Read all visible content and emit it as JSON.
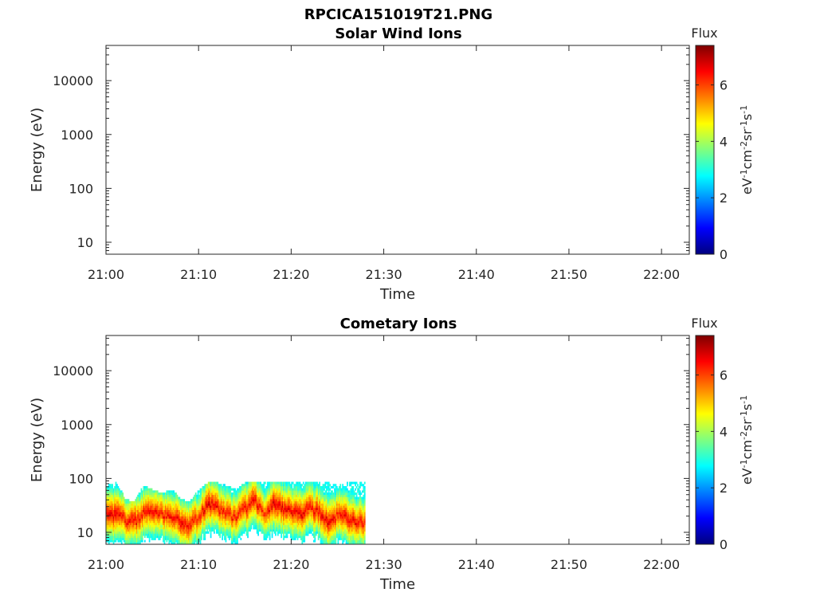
{
  "figure_title": "RPCICA151019T21.PNG",
  "colormap": [
    "#00007f",
    "#0000ff",
    "#007fff",
    "#00ffff",
    "#7fff7f",
    "#ffff00",
    "#ff7f00",
    "#ff0000",
    "#7f0000"
  ],
  "chart_data": [
    {
      "type": "heatmap",
      "title": "Solar Wind Ions",
      "xlabel": "Time",
      "ylabel": "Energy (eV)",
      "y_scale": "log",
      "xlim": [
        "21:00",
        "22:03"
      ],
      "ylim": [
        6,
        45000
      ],
      "x_ticks": [
        "21:00",
        "21:10",
        "21:20",
        "21:30",
        "21:40",
        "21:50",
        "22:00"
      ],
      "y_ticks": [
        "10",
        "100",
        "1000",
        "10000"
      ],
      "colorbar": {
        "label": "Flux",
        "units": "eV-1cm-2sr-1s-1",
        "range": [
          0,
          7.4
        ],
        "ticks": [
          "0",
          "2",
          "4",
          "6"
        ]
      },
      "data": []
    },
    {
      "type": "heatmap",
      "title": "Cometary Ions",
      "xlabel": "Time",
      "ylabel": "Energy (eV)",
      "y_scale": "log",
      "xlim": [
        "21:00",
        "22:03"
      ],
      "ylim": [
        6,
        45000
      ],
      "x_ticks": [
        "21:00",
        "21:10",
        "21:20",
        "21:30",
        "21:40",
        "21:50",
        "22:00"
      ],
      "y_ticks": [
        "10",
        "100",
        "1000",
        "10000"
      ],
      "colorbar": {
        "label": "Flux",
        "units": "eV-1cm-2sr-1s-1",
        "range": [
          0,
          7.4
        ],
        "ticks": [
          "0",
          "2",
          "4",
          "6"
        ]
      },
      "data": [
        {
          "t": "21:00",
          "peak_energy": 20,
          "peak_flux": 6.8,
          "max_energy": 70
        },
        {
          "t": "21:01",
          "peak_energy": 18,
          "peak_flux": 6.9,
          "max_energy": 80
        },
        {
          "t": "21:02",
          "peak_energy": 16,
          "peak_flux": 6.5,
          "max_energy": 40
        },
        {
          "t": "21:03",
          "peak_energy": 14,
          "peak_flux": 6.7,
          "max_energy": 35
        },
        {
          "t": "21:04",
          "peak_energy": 20,
          "peak_flux": 6.6,
          "max_energy": 70
        },
        {
          "t": "21:05",
          "peak_energy": 22,
          "peak_flux": 6.7,
          "max_energy": 60
        },
        {
          "t": "21:06",
          "peak_energy": 20,
          "peak_flux": 6.5,
          "max_energy": 50
        },
        {
          "t": "21:07",
          "peak_energy": 18,
          "peak_flux": 6.6,
          "max_energy": 60
        },
        {
          "t": "21:08",
          "peak_energy": 14,
          "peak_flux": 6.8,
          "max_energy": 40
        },
        {
          "t": "21:09",
          "peak_energy": 12,
          "peak_flux": 6.7,
          "max_energy": 35
        },
        {
          "t": "21:10",
          "peak_energy": 18,
          "peak_flux": 6.4,
          "max_energy": 60
        },
        {
          "t": "21:11",
          "peak_energy": 30,
          "peak_flux": 6.9,
          "max_energy": 80
        },
        {
          "t": "21:12",
          "peak_energy": 25,
          "peak_flux": 6.6,
          "max_energy": 80
        },
        {
          "t": "21:13",
          "peak_energy": 20,
          "peak_flux": 6.5,
          "max_energy": 70
        },
        {
          "t": "21:14",
          "peak_energy": 18,
          "peak_flux": 6.5,
          "max_energy": 60
        },
        {
          "t": "21:15",
          "peak_energy": 25,
          "peak_flux": 6.6,
          "max_energy": 80
        },
        {
          "t": "21:16",
          "peak_energy": 35,
          "peak_flux": 6.8,
          "max_energy": 80
        },
        {
          "t": "21:17",
          "peak_energy": 20,
          "peak_flux": 6.3,
          "max_energy": 80
        },
        {
          "t": "21:18",
          "peak_energy": 30,
          "peak_flux": 6.9,
          "max_energy": 80
        },
        {
          "t": "21:19",
          "peak_energy": 25,
          "peak_flux": 6.8,
          "max_energy": 80
        },
        {
          "t": "21:20",
          "peak_energy": 22,
          "peak_flux": 6.7,
          "max_energy": 80
        },
        {
          "t": "21:21",
          "peak_energy": 20,
          "peak_flux": 6.8,
          "max_energy": 80
        },
        {
          "t": "21:22",
          "peak_energy": 25,
          "peak_flux": 6.6,
          "max_energy": 80
        },
        {
          "t": "21:23",
          "peak_energy": 22,
          "peak_flux": 6.7,
          "max_energy": 80
        },
        {
          "t": "21:24",
          "peak_energy": 14,
          "peak_flux": 6.9,
          "max_energy": 80
        },
        {
          "t": "21:25",
          "peak_energy": 20,
          "peak_flux": 6.5,
          "max_energy": 70
        },
        {
          "t": "21:26",
          "peak_energy": 16,
          "peak_flux": 6.8,
          "max_energy": 80
        },
        {
          "t": "21:27",
          "peak_energy": 14,
          "peak_flux": 6.6,
          "max_energy": 80
        }
      ]
    }
  ]
}
